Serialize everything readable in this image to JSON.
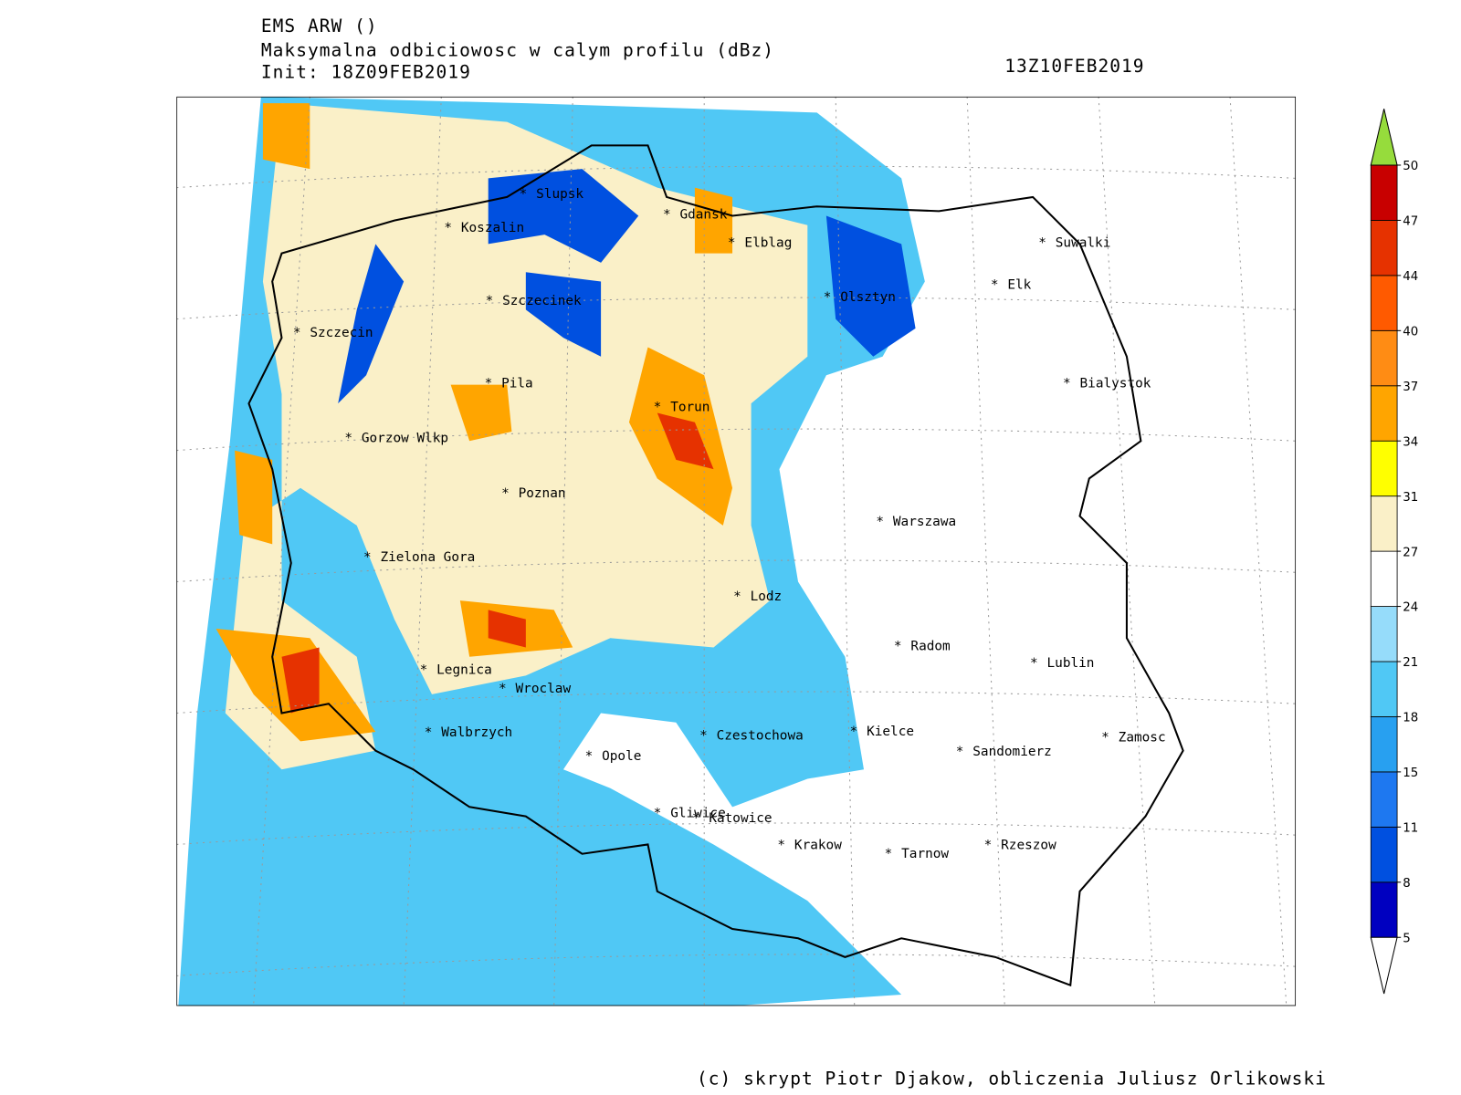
{
  "header": {
    "model": "EMS ARW ()",
    "field": "Maksymalna odbiciowosc w calym profilu (dBz)",
    "init": "Init: 18Z09FEB2019",
    "valid": "13Z10FEB2019"
  },
  "footer": "(c) skrypt Piotr Djakow, obliczenia Juliusz Orlikowski",
  "cities": [
    "Slupsk",
    "Koszalin",
    "Gdansk",
    "Elblag",
    "Suwalki",
    "Elk",
    "Szczecinek",
    "Olsztyn",
    "Szczecin",
    "Pila",
    "Torun",
    "Bialystok",
    "Gorzow Wlkp",
    "Poznan",
    "Warszawa",
    "Zielona Gora",
    "Lodz",
    "Radom",
    "Lublin",
    "Legnica",
    "Wroclaw",
    "Walbrzych",
    "Czestochowa",
    "Kielce",
    "Sandomierz",
    "Zamosc",
    "Opole",
    "Gliwice",
    "Katowice",
    "Krakow",
    "Tarnow",
    "Rzeszow"
  ],
  "colorbar": {
    "levels": [
      5,
      8,
      11,
      15,
      18,
      21,
      24,
      27,
      31,
      34,
      37,
      40,
      44,
      47,
      50
    ],
    "colors": [
      "#0000c0",
      "#0050e0",
      "#1e78f0",
      "#28a0f0",
      "#50c8f5",
      "#96dcfa",
      "#ffffff",
      "#faf0c8",
      "#ffff00",
      "#ffa500",
      "#ff8c14",
      "#ff5a00",
      "#e63200",
      "#c80000"
    ]
  }
}
